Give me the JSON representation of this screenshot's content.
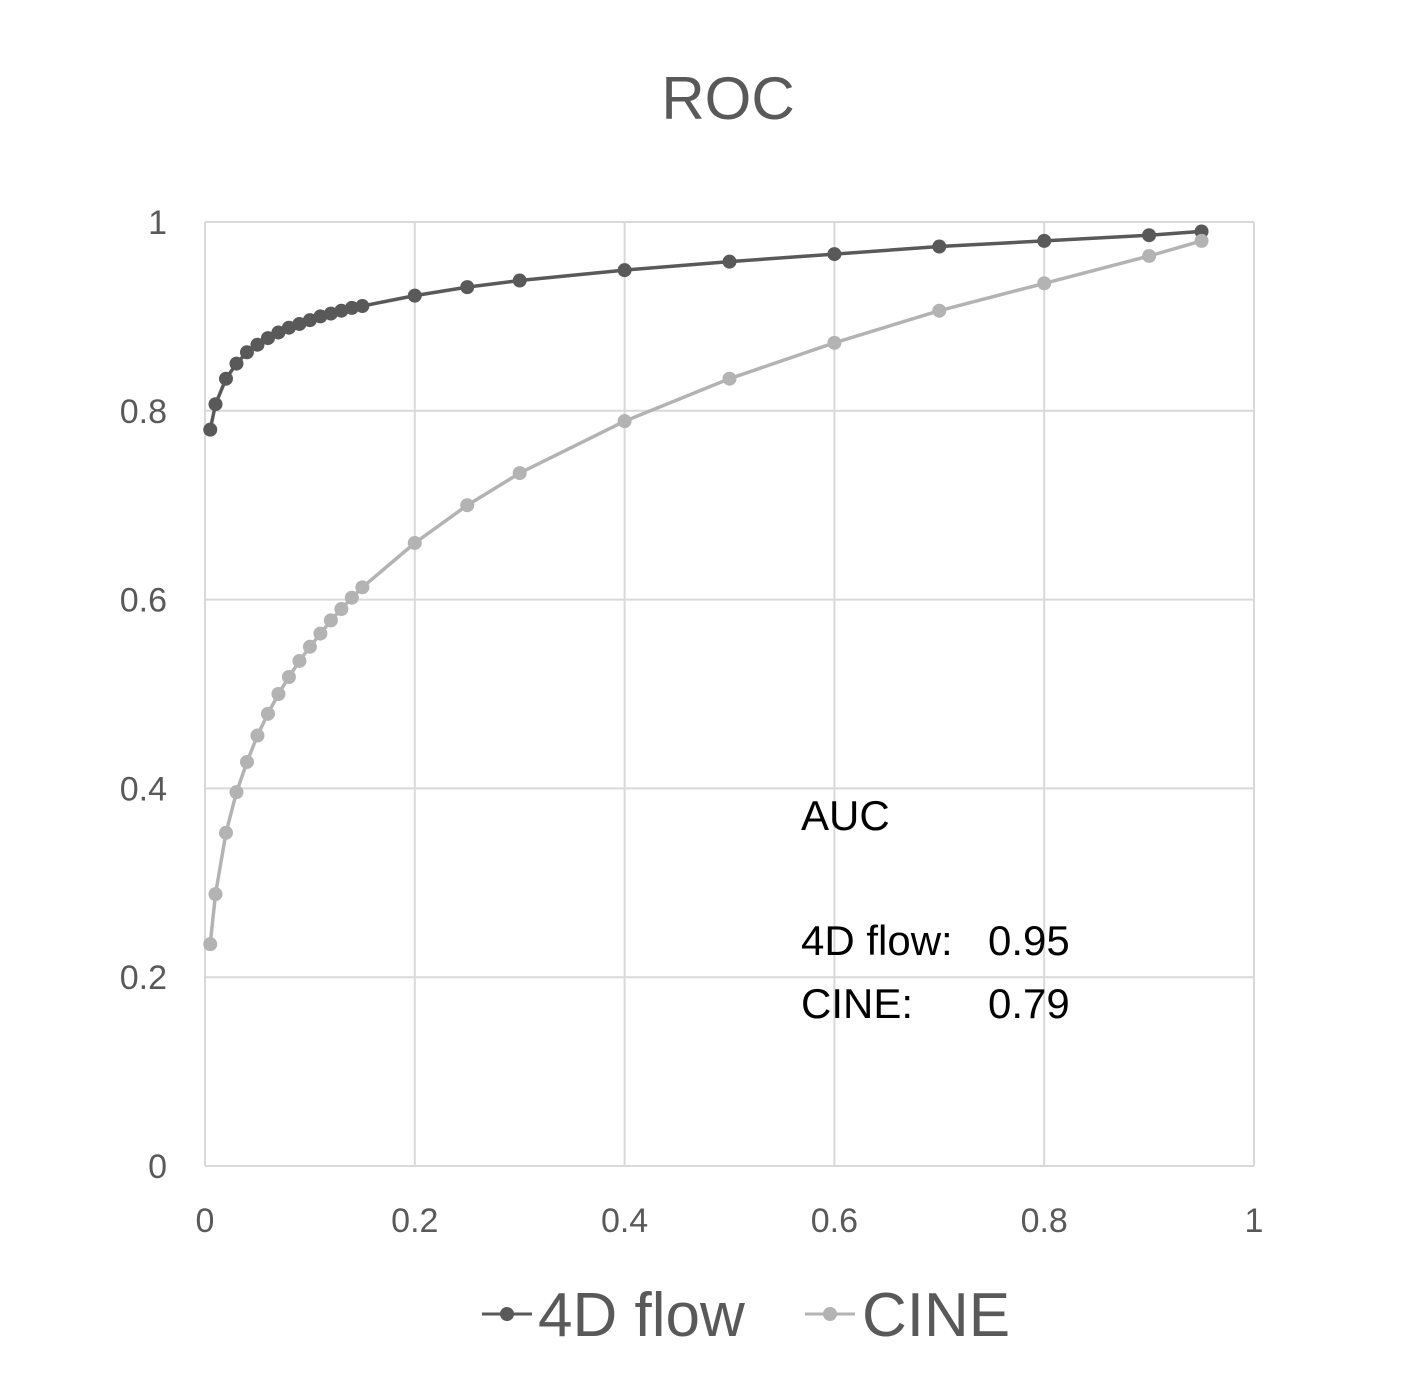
{
  "chart_data": {
    "type": "line",
    "title": "ROC",
    "xlabel": "",
    "ylabel": "",
    "xlim": [
      0,
      1
    ],
    "ylim": [
      0,
      1
    ],
    "x_ticks": [
      "0",
      "0.2",
      "0.4",
      "0.6",
      "0.8",
      "1"
    ],
    "y_ticks": [
      "0",
      "0.2",
      "0.4",
      "0.6",
      "0.8",
      "1"
    ],
    "grid": true,
    "legend_position": "bottom",
    "series": [
      {
        "name": "4D flow",
        "color": "#595959",
        "x": [
          0.005,
          0.01,
          0.02,
          0.03,
          0.04,
          0.05,
          0.06,
          0.07,
          0.08,
          0.09,
          0.1,
          0.11,
          0.12,
          0.13,
          0.14,
          0.15,
          0.2,
          0.25,
          0.3,
          0.4,
          0.5,
          0.6,
          0.7,
          0.8,
          0.9,
          0.95
        ],
        "y": [
          0.78,
          0.807,
          0.834,
          0.85,
          0.862,
          0.87,
          0.877,
          0.883,
          0.888,
          0.892,
          0.896,
          0.9,
          0.903,
          0.906,
          0.909,
          0.911,
          0.922,
          0.931,
          0.938,
          0.949,
          0.958,
          0.966,
          0.974,
          0.98,
          0.986,
          0.99
        ]
      },
      {
        "name": "CINE",
        "color": "#b3b3b3",
        "x": [
          0.005,
          0.01,
          0.02,
          0.03,
          0.04,
          0.05,
          0.06,
          0.07,
          0.08,
          0.09,
          0.1,
          0.11,
          0.12,
          0.13,
          0.14,
          0.15,
          0.2,
          0.25,
          0.3,
          0.4,
          0.5,
          0.6,
          0.7,
          0.8,
          0.9,
          0.95
        ],
        "y": [
          0.235,
          0.288,
          0.353,
          0.396,
          0.428,
          0.456,
          0.479,
          0.5,
          0.518,
          0.535,
          0.55,
          0.564,
          0.578,
          0.59,
          0.602,
          0.613,
          0.66,
          0.7,
          0.734,
          0.789,
          0.834,
          0.872,
          0.906,
          0.935,
          0.964,
          0.98
        ]
      }
    ],
    "annotation": {
      "heading": "AUC",
      "rows": [
        {
          "label": "4D flow:",
          "value": "0.95"
        },
        {
          "label": "CINE:",
          "value": "0.79"
        }
      ]
    }
  }
}
